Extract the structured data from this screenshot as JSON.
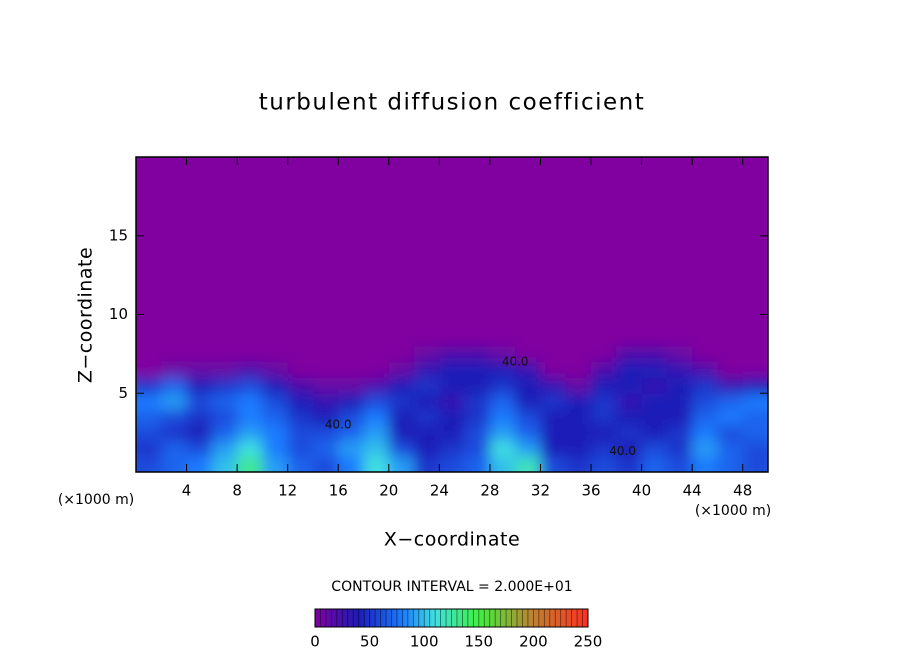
{
  "chart_data": {
    "type": "heatmap",
    "title": "turbulent diffusion coefficient",
    "x_label": "X−coordinate",
    "y_label": "Z−coordinate",
    "x_unit_label": "(×1000 m)",
    "y_unit_label": "(×1000 m)",
    "contour_note": "CONTOUR INTERVAL = 2.000E+01",
    "xlim": [
      0,
      50
    ],
    "ylim": [
      0,
      20
    ],
    "xticks": [
      4,
      8,
      12,
      16,
      20,
      24,
      28,
      32,
      36,
      40,
      44,
      48
    ],
    "yticks": [
      5,
      10,
      15
    ],
    "x_edges": [
      0,
      2,
      4,
      6,
      8,
      10,
      12,
      14,
      16,
      18,
      20,
      22,
      24,
      26,
      28,
      30,
      32,
      34,
      36,
      38,
      40,
      42,
      44,
      46,
      48,
      50
    ],
    "y_edges": [
      0,
      1,
      2,
      3,
      4,
      5,
      6,
      7,
      8,
      20
    ],
    "values": [
      [
        60,
        70,
        80,
        100,
        130,
        90,
        70,
        60,
        80,
        110,
        90,
        50,
        60,
        70,
        100,
        120,
        60,
        50,
        60,
        50,
        70,
        60,
        80,
        70,
        60
      ],
      [
        50,
        70,
        60,
        90,
        110,
        80,
        60,
        70,
        90,
        100,
        60,
        40,
        50,
        60,
        110,
        90,
        40,
        40,
        50,
        40,
        60,
        50,
        90,
        70,
        60
      ],
      [
        60,
        50,
        40,
        70,
        90,
        80,
        60,
        60,
        70,
        90,
        40,
        40,
        40,
        60,
        90,
        70,
        40,
        40,
        40,
        50,
        40,
        50,
        80,
        60,
        70
      ],
      [
        70,
        60,
        50,
        60,
        80,
        70,
        50,
        40,
        60,
        80,
        40,
        50,
        40,
        50,
        80,
        60,
        40,
        40,
        50,
        40,
        40,
        40,
        70,
        80,
        70
      ],
      [
        80,
        90,
        60,
        70,
        80,
        60,
        40,
        30,
        40,
        60,
        50,
        40,
        30,
        50,
        70,
        40,
        50,
        40,
        50,
        30,
        40,
        40,
        60,
        70,
        80
      ],
      [
        50,
        70,
        40,
        50,
        60,
        40,
        20,
        10,
        10,
        20,
        40,
        50,
        40,
        40,
        50,
        40,
        30,
        10,
        40,
        40,
        30,
        40,
        50,
        30,
        40
      ],
      [
        0,
        10,
        10,
        10,
        20,
        10,
        0,
        0,
        0,
        0,
        10,
        30,
        40,
        40,
        40,
        30,
        0,
        0,
        20,
        40,
        40,
        30,
        20,
        0,
        0
      ],
      [
        0,
        0,
        0,
        0,
        0,
        0,
        0,
        0,
        0,
        0,
        0,
        10,
        20,
        20,
        10,
        0,
        0,
        0,
        0,
        20,
        20,
        10,
        0,
        0,
        0
      ],
      [
        0,
        0,
        0,
        0,
        0,
        0,
        0,
        0,
        0,
        0,
        0,
        0,
        0,
        0,
        0,
        0,
        0,
        0,
        0,
        0,
        0,
        0,
        0,
        0,
        0
      ]
    ],
    "colorscale": [
      [
        0,
        "#8000a0"
      ],
      [
        40,
        "#1c1cb8"
      ],
      [
        80,
        "#1a7cff"
      ],
      [
        110,
        "#40e0e0"
      ],
      [
        150,
        "#40f040"
      ],
      [
        200,
        "#c08030"
      ],
      [
        250,
        "#ff3020"
      ]
    ],
    "colorbar_ticks": [
      0,
      50,
      100,
      150,
      200,
      250
    ],
    "annotations": [
      {
        "text": "40.0",
        "x": 30,
        "y": 7
      },
      {
        "text": "40.0",
        "x": 38.5,
        "y": 1.3
      },
      {
        "text": "40.0",
        "x": 16,
        "y": 3
      }
    ]
  }
}
